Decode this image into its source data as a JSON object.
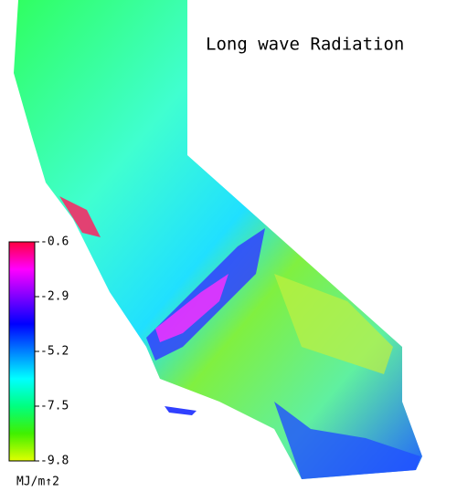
{
  "map": {
    "title": "Long wave Radiation",
    "colorbar": {
      "lim": [
        -9.8,
        -0.6
      ],
      "ticks": [
        -0.6,
        -2.9,
        -5.2,
        -7.5,
        -9.8
      ],
      "unit": "MJ/m↑2",
      "colors": [
        "#e0ff00",
        "#40f000",
        "#00ff80",
        "#00ffff",
        "#0080ff",
        "#0000ff",
        "#8000ff",
        "#ff00ff",
        "#ff0040"
      ]
    }
  }
}
